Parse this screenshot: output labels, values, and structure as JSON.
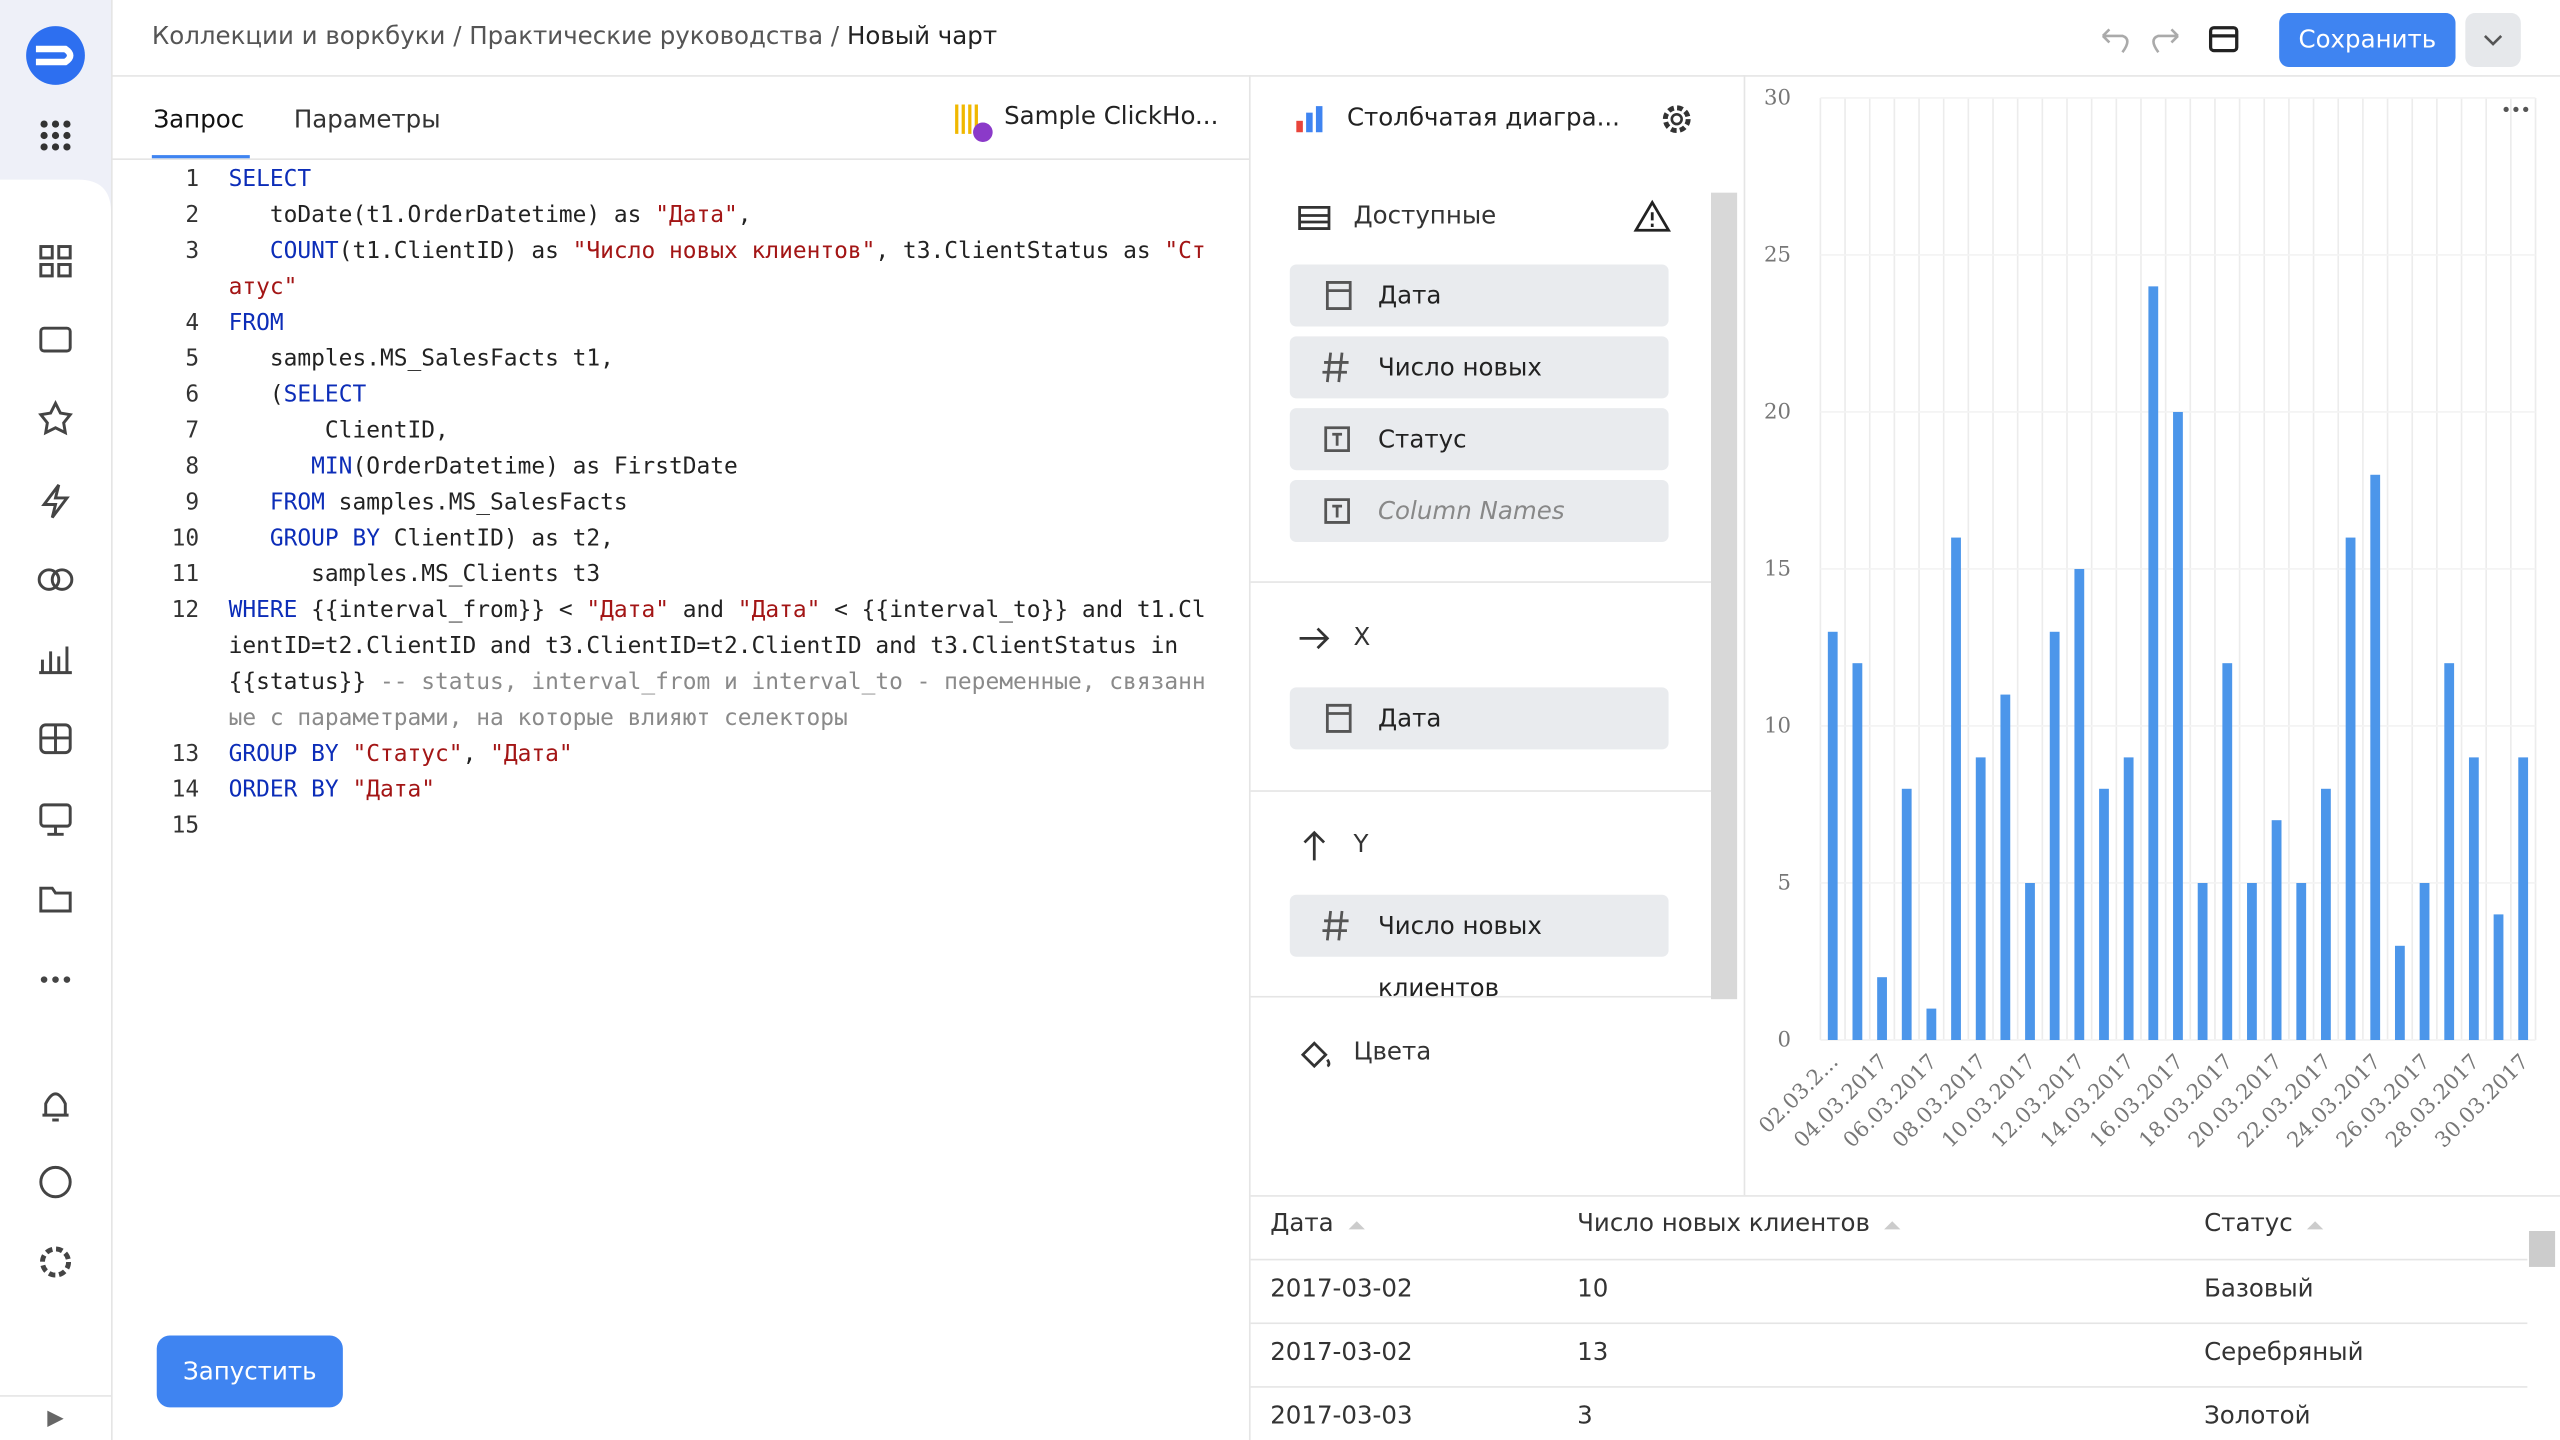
{
  "breadcrumbs": [
    "Коллекции и воркбуки",
    "Практические руководства",
    "Новый чарт"
  ],
  "save_button": "Сохранить",
  "tabs": [
    "Запрос",
    "Параметры"
  ],
  "connection": "Sample ClickHo...",
  "code": [
    {
      "number": 1,
      "text": "SELECT"
    },
    {
      "number": 2,
      "text": "   toDate(t1.OrderDatetime) as \"Дата\","
    },
    {
      "number": 3,
      "text": "   COUNT(t1.ClientID) as \"Число новых клиентов\", t3.ClientStatus as \"Статус\""
    },
    {
      "number": 4,
      "text": "FROM"
    },
    {
      "number": 5,
      "text": "   samples.MS_SalesFacts t1,"
    },
    {
      "number": 6,
      "text": "   (SELECT"
    },
    {
      "number": 7,
      "text": "       ClientID,"
    },
    {
      "number": 8,
      "text": "      MIN(OrderDatetime) as FirstDate"
    },
    {
      "number": 9,
      "text": "   FROM samples.MS_SalesFacts"
    },
    {
      "number": 10,
      "text": "   GROUP BY ClientID) as t2,"
    },
    {
      "number": 11,
      "text": "      samples.MS_Clients t3"
    },
    {
      "number": 12,
      "text": "WHERE {{interval_from}} < \"Дата\" and \"Дата\" < {{interval_to}} and t1.ClientID=t2.ClientID and t3.ClientID=t2.ClientID and t3.ClientStatus in {{status}} -- status, interval_from и interval_to - переменные, связанные с параметрами, на которые влияют селекторы"
    },
    {
      "number": 13,
      "text": "GROUP BY \"Статус\", \"Дата\""
    },
    {
      "number": 14,
      "text": "ORDER BY \"Дата\""
    },
    {
      "number": 15
    }
  ],
  "run_button": "Запустить",
  "visualization": "Столбчатая диагра...",
  "sections": [
    {
      "title": "Доступные",
      "fields": [
        "Дата",
        "Число новых клиентов",
        "Статус",
        "Column Names"
      ]
    },
    {
      "title": "X",
      "fields": [
        "Дата"
      ]
    },
    {
      "title": "Y",
      "fields": [
        "Число новых клиентов"
      ]
    },
    {
      "title": "Цвета",
      "fields": []
    }
  ],
  "chart_data": {
    "type": "bar",
    "color": "#4c96ea",
    "categories": [
      "02.03.2...",
      null,
      "04.03.2017",
      null,
      "06.03.2017",
      null,
      "08.03.2017",
      null,
      "10.03.2017",
      null,
      "12.03.2017",
      null,
      "14.03.2017",
      null,
      "16.03.2017",
      null,
      "18.03.2017",
      null,
      "20.03.2017",
      null,
      "22.03.2017",
      null,
      "24.03.2017",
      null,
      "26.03.2017",
      null,
      "28.03.2017",
      null,
      "30.03.2017"
    ],
    "values": [
      13,
      12,
      2,
      8,
      1,
      16,
      9,
      11,
      5,
      13,
      15,
      8,
      9,
      24,
      20,
      5,
      12,
      5,
      7,
      5,
      8,
      16,
      18,
      3,
      5,
      12,
      9,
      4,
      9
    ],
    "ylim": [
      0,
      30
    ],
    "yticks": [
      0,
      5,
      10,
      15,
      20,
      25,
      30
    ],
    "grid": true
  },
  "table": {
    "headers": [
      "Дата",
      "Число новых клиентов",
      "Статус"
    ],
    "rows": [
      [
        "2017-03-02",
        10,
        "Базовый"
      ],
      [
        "2017-03-02",
        13,
        "Серебряный"
      ],
      [
        "2017-03-03",
        3,
        "Золотой"
      ]
    ]
  }
}
